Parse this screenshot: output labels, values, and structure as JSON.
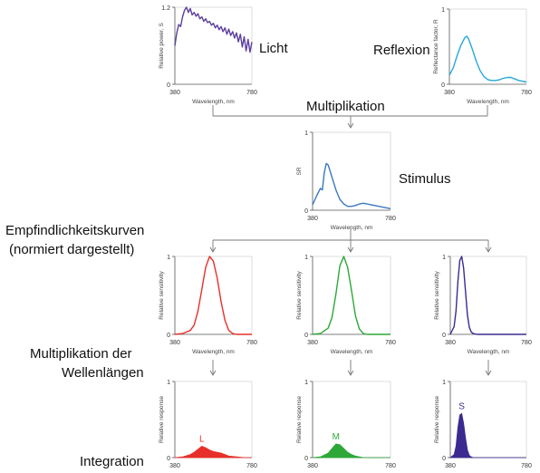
{
  "labels": {
    "light": "Licht",
    "reflection": "Reflexion",
    "multiplication": "Multiplikation",
    "stimulus": "Stimulus",
    "sensitivity_line1": "Empfindlichkeitskurven",
    "sensitivity_line2": "(normiert dargestellt)",
    "wl_mult_line1": "Multiplikation der",
    "wl_mult_line2": "Wellenlängen",
    "integration": "Integration"
  },
  "colors": {
    "light": "#5b3fa0",
    "reflection": "#29a8d8",
    "stimulus": "#3a78c0",
    "L": "#e8302a",
    "M": "#2da838",
    "S": "#3c2a90",
    "axis": "#555555",
    "flow": "#777777"
  },
  "chart_data": [
    {
      "id": "light",
      "type": "line",
      "ylabel": "Relative power, S",
      "xlabel": "Wavelength, nm",
      "xlim": [
        380,
        780
      ],
      "ylim": [
        0,
        1.2
      ],
      "xticks": [
        "380",
        "780"
      ],
      "yticks": [
        "0",
        "1.2"
      ],
      "series": [
        {
          "x": [
            380,
            390,
            400,
            410,
            420,
            430,
            440,
            450,
            460,
            470,
            480,
            490,
            500,
            510,
            520,
            530,
            540,
            550,
            560,
            570,
            580,
            590,
            600,
            610,
            620,
            630,
            640,
            650,
            660,
            670,
            680,
            690,
            700,
            710,
            720,
            730,
            740,
            750,
            760,
            770,
            780
          ],
          "values": [
            0.6,
            0.8,
            0.93,
            0.9,
            1.05,
            1.15,
            1.2,
            1.12,
            1.18,
            1.08,
            1.12,
            1.06,
            1.1,
            1.02,
            1.05,
            0.98,
            1.02,
            0.96,
            0.98,
            0.92,
            0.95,
            0.88,
            0.92,
            0.85,
            0.9,
            0.82,
            0.88,
            0.78,
            0.86,
            0.76,
            0.82,
            0.72,
            0.8,
            0.66,
            0.78,
            0.58,
            0.74,
            0.52,
            0.7,
            0.5,
            0.66
          ]
        }
      ]
    },
    {
      "id": "reflection",
      "type": "line",
      "ylabel": "Reflectance factor, R",
      "xlabel": "Wavelength, nm",
      "xlim": [
        380,
        780
      ],
      "ylim": [
        0,
        1
      ],
      "xticks": [
        "380",
        "780"
      ],
      "yticks": [
        "0",
        "1"
      ],
      "series": [
        {
          "x": [
            380,
            400,
            420,
            440,
            460,
            470,
            480,
            500,
            520,
            540,
            560,
            580,
            600,
            620,
            640,
            660,
            680,
            700,
            720,
            740,
            760,
            780
          ],
          "values": [
            0.12,
            0.22,
            0.38,
            0.52,
            0.62,
            0.64,
            0.6,
            0.46,
            0.3,
            0.18,
            0.1,
            0.06,
            0.05,
            0.05,
            0.06,
            0.08,
            0.09,
            0.09,
            0.07,
            0.05,
            0.04,
            0.03
          ]
        }
      ]
    },
    {
      "id": "stimulus",
      "type": "line",
      "ylabel": "SR",
      "xlabel": "Wavelength, nm",
      "xlim": [
        380,
        780
      ],
      "ylim": [
        0,
        1
      ],
      "xticks": [
        "380",
        "780"
      ],
      "yticks": [
        "0",
        "1"
      ],
      "series": [
        {
          "x": [
            380,
            400,
            420,
            430,
            440,
            450,
            460,
            470,
            480,
            500,
            520,
            540,
            560,
            580,
            600,
            620,
            640,
            660,
            680,
            700,
            720,
            740,
            760,
            780
          ],
          "values": [
            0.07,
            0.18,
            0.28,
            0.26,
            0.48,
            0.6,
            0.58,
            0.5,
            0.42,
            0.26,
            0.14,
            0.08,
            0.05,
            0.05,
            0.06,
            0.08,
            0.09,
            0.08,
            0.07,
            0.06,
            0.05,
            0.04,
            0.03,
            0.02
          ]
        }
      ]
    },
    {
      "id": "sens_L",
      "type": "line",
      "ylabel": "Relative sensitivity",
      "xlabel": "Wavelength, nm",
      "xlim": [
        380,
        780
      ],
      "ylim": [
        0,
        1
      ],
      "xticks": [
        "380",
        "780"
      ],
      "yticks": [
        "0",
        "1"
      ],
      "series": [
        {
          "x": [
            380,
            420,
            460,
            480,
            500,
            520,
            540,
            560,
            580,
            600,
            620,
            640,
            660,
            680,
            700,
            740,
            780
          ],
          "values": [
            0.0,
            0.01,
            0.05,
            0.12,
            0.3,
            0.58,
            0.86,
            1.0,
            0.94,
            0.72,
            0.42,
            0.18,
            0.05,
            0.01,
            0.0,
            0.0,
            0.0
          ]
        }
      ]
    },
    {
      "id": "sens_M",
      "type": "line",
      "ylabel": "Relative sensitivity",
      "xlabel": "Wavelength, nm",
      "xlim": [
        380,
        780
      ],
      "ylim": [
        0,
        1
      ],
      "xticks": [
        "380",
        "780"
      ],
      "yticks": [
        "0",
        "1"
      ],
      "series": [
        {
          "x": [
            380,
            420,
            460,
            480,
            500,
            520,
            540,
            560,
            580,
            600,
            620,
            640,
            660,
            700,
            740,
            780
          ],
          "values": [
            0.0,
            0.01,
            0.08,
            0.22,
            0.52,
            0.88,
            1.0,
            0.86,
            0.56,
            0.24,
            0.07,
            0.01,
            0.0,
            0.0,
            0.0,
            0.0
          ]
        }
      ]
    },
    {
      "id": "sens_S",
      "type": "line",
      "ylabel": "Relative sensitivity",
      "xlabel": "Wavelength, nm",
      "xlim": [
        380,
        780
      ],
      "ylim": [
        0,
        1
      ],
      "xticks": [
        "380",
        "780"
      ],
      "yticks": [
        "0",
        "1"
      ],
      "series": [
        {
          "x": [
            380,
            400,
            410,
            420,
            430,
            440,
            450,
            460,
            470,
            480,
            490,
            500,
            520,
            560,
            620,
            700,
            780
          ],
          "values": [
            0.0,
            0.1,
            0.3,
            0.68,
            0.95,
            1.0,
            0.85,
            0.55,
            0.25,
            0.09,
            0.03,
            0.01,
            0.0,
            0.0,
            0.0,
            0.0,
            0.0
          ]
        }
      ]
    },
    {
      "id": "resp_L",
      "type": "area",
      "ylabel": "Relative response",
      "xlabel": "Wavelength, nm",
      "xlim": [
        380,
        780
      ],
      "ylim": [
        0,
        1
      ],
      "xticks": [
        "380",
        "780"
      ],
      "yticks": [
        "0",
        "1"
      ],
      "annotation": "L",
      "series": [
        {
          "x": [
            380,
            420,
            460,
            480,
            500,
            520,
            540,
            560,
            580,
            600,
            620,
            640,
            660,
            700,
            740,
            780
          ],
          "values": [
            0.0,
            0.01,
            0.04,
            0.07,
            0.11,
            0.15,
            0.13,
            0.1,
            0.08,
            0.07,
            0.06,
            0.04,
            0.02,
            0.01,
            0.0,
            0.0
          ]
        }
      ]
    },
    {
      "id": "resp_M",
      "type": "area",
      "ylabel": "Relative response",
      "xlabel": "Wavelength, nm",
      "xlim": [
        380,
        780
      ],
      "ylim": [
        0,
        1
      ],
      "xticks": [
        "380",
        "780"
      ],
      "yticks": [
        "0",
        "1"
      ],
      "annotation": "M",
      "series": [
        {
          "x": [
            380,
            420,
            460,
            480,
            500,
            520,
            540,
            560,
            580,
            600,
            620,
            640,
            660,
            700,
            780
          ],
          "values": [
            0.0,
            0.01,
            0.06,
            0.12,
            0.18,
            0.17,
            0.12,
            0.07,
            0.04,
            0.02,
            0.01,
            0.0,
            0.0,
            0.0,
            0.0
          ]
        }
      ]
    },
    {
      "id": "resp_S",
      "type": "area",
      "ylabel": "Relative response",
      "xlabel": "Wavelength, nm",
      "xlim": [
        380,
        780
      ],
      "ylim": [
        0,
        1
      ],
      "xticks": [
        "380",
        "780"
      ],
      "yticks": [
        "0",
        "1"
      ],
      "annotation": "S",
      "series": [
        {
          "x": [
            380,
            400,
            410,
            420,
            430,
            440,
            450,
            460,
            470,
            480,
            490,
            500,
            520,
            560,
            780
          ],
          "values": [
            0.0,
            0.04,
            0.15,
            0.4,
            0.56,
            0.58,
            0.45,
            0.26,
            0.1,
            0.03,
            0.01,
            0.0,
            0.0,
            0.0,
            0.0
          ]
        }
      ]
    }
  ]
}
